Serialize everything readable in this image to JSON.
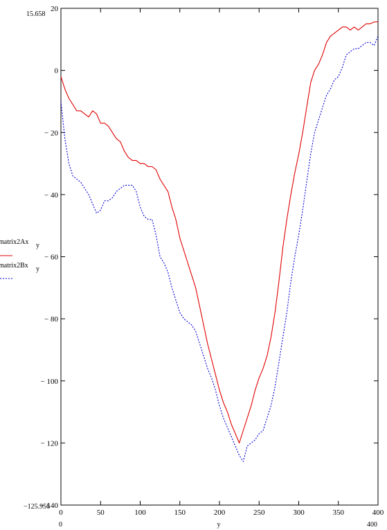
{
  "chart_data": {
    "type": "line",
    "title": "",
    "xlabel": "y",
    "ylabel": "",
    "xlim": [
      0,
      400
    ],
    "ylim": [
      -140,
      20
    ],
    "grid": false,
    "legend_position": "left",
    "x_ticks": [
      0,
      50,
      100,
      150,
      200,
      250,
      300,
      350,
      400
    ],
    "y_ticks": [
      20,
      0,
      -20,
      -40,
      -60,
      -80,
      -100,
      -120,
      -140
    ],
    "x_tick_labels": [
      "0",
      "50",
      "100",
      "150",
      "200",
      "250",
      "300",
      "350",
      "400"
    ],
    "y_tick_labels": [
      "20",
      "0",
      "− 20",
      "− 40",
      "− 60",
      "− 80",
      "− 100",
      "− 120",
      "− 140"
    ],
    "axis_annotations": {
      "y_max": "15.658",
      "y_min": "−125.956",
      "x_min": "0",
      "x_max": "400"
    },
    "series": [
      {
        "name": "matrix2Ax",
        "subscript": "y",
        "color": "#e00000",
        "dash": "solid",
        "x": [
          0,
          5,
          10,
          15,
          20,
          25,
          30,
          35,
          40,
          45,
          50,
          55,
          60,
          65,
          70,
          75,
          80,
          85,
          90,
          95,
          100,
          105,
          110,
          115,
          120,
          125,
          130,
          135,
          140,
          145,
          150,
          155,
          160,
          165,
          170,
          175,
          180,
          185,
          190,
          195,
          200,
          205,
          210,
          215,
          220,
          225,
          230,
          235,
          240,
          245,
          250,
          255,
          260,
          265,
          270,
          275,
          280,
          285,
          290,
          295,
          300,
          305,
          310,
          315,
          320,
          325,
          330,
          335,
          340,
          345,
          350,
          355,
          360,
          365,
          370,
          375,
          380,
          385,
          390,
          395,
          400
        ],
        "y": [
          -2,
          -6,
          -9,
          -11,
          -13,
          -13,
          -14,
          -15,
          -13,
          -14,
          -17,
          -17,
          -18,
          -20,
          -22,
          -23,
          -26,
          -28,
          -29,
          -29,
          -30,
          -30,
          -31,
          -31,
          -32,
          -35,
          -37,
          -39,
          -44,
          -48,
          -54,
          -58,
          -62,
          -66,
          -70,
          -76,
          -82,
          -88,
          -93,
          -98,
          -103,
          -107,
          -110,
          -114,
          -117,
          -120,
          -116,
          -112,
          -108,
          -103,
          -99,
          -96,
          -92,
          -86,
          -78,
          -68,
          -57,
          -48,
          -40,
          -33,
          -27,
          -20,
          -12,
          -4,
          0,
          2,
          5,
          9,
          11,
          12,
          13,
          14,
          14,
          13,
          14,
          13,
          14,
          15,
          15,
          15.6,
          15.658
        ]
      },
      {
        "name": "matrix2Bx",
        "subscript": "y",
        "color": "#0000d8",
        "dash": "dashed",
        "x": [
          0,
          5,
          10,
          15,
          20,
          25,
          30,
          35,
          40,
          45,
          50,
          55,
          60,
          65,
          70,
          75,
          80,
          85,
          90,
          95,
          100,
          105,
          110,
          115,
          120,
          125,
          130,
          135,
          140,
          145,
          150,
          155,
          160,
          165,
          170,
          175,
          180,
          185,
          190,
          195,
          200,
          205,
          210,
          215,
          220,
          225,
          230,
          235,
          240,
          245,
          250,
          255,
          260,
          265,
          270,
          275,
          280,
          285,
          290,
          295,
          300,
          305,
          310,
          315,
          320,
          325,
          330,
          335,
          340,
          345,
          350,
          355,
          360,
          365,
          370,
          375,
          380,
          385,
          390,
          395,
          400
        ],
        "y": [
          -10,
          -22,
          -30,
          -34,
          -35,
          -36,
          -38,
          -40,
          -43,
          -46,
          -45,
          -42,
          -42,
          -41,
          -39,
          -38,
          -37,
          -37,
          -37,
          -39,
          -44,
          -47,
          -48,
          -48,
          -53,
          -60,
          -62,
          -65,
          -70,
          -74,
          -78,
          -80,
          -81,
          -82,
          -84,
          -88,
          -92,
          -96,
          -99,
          -103,
          -108,
          -112,
          -115,
          -118,
          -121,
          -124,
          -125.956,
          -121,
          -120,
          -119,
          -117,
          -116,
          -112,
          -108,
          -102,
          -94,
          -86,
          -78,
          -68,
          -60,
          -53,
          -45,
          -36,
          -27,
          -20,
          -16,
          -12,
          -8,
          -6,
          -3,
          -2,
          1,
          5,
          6,
          7,
          7,
          8,
          9,
          9,
          8,
          11
        ]
      }
    ]
  }
}
